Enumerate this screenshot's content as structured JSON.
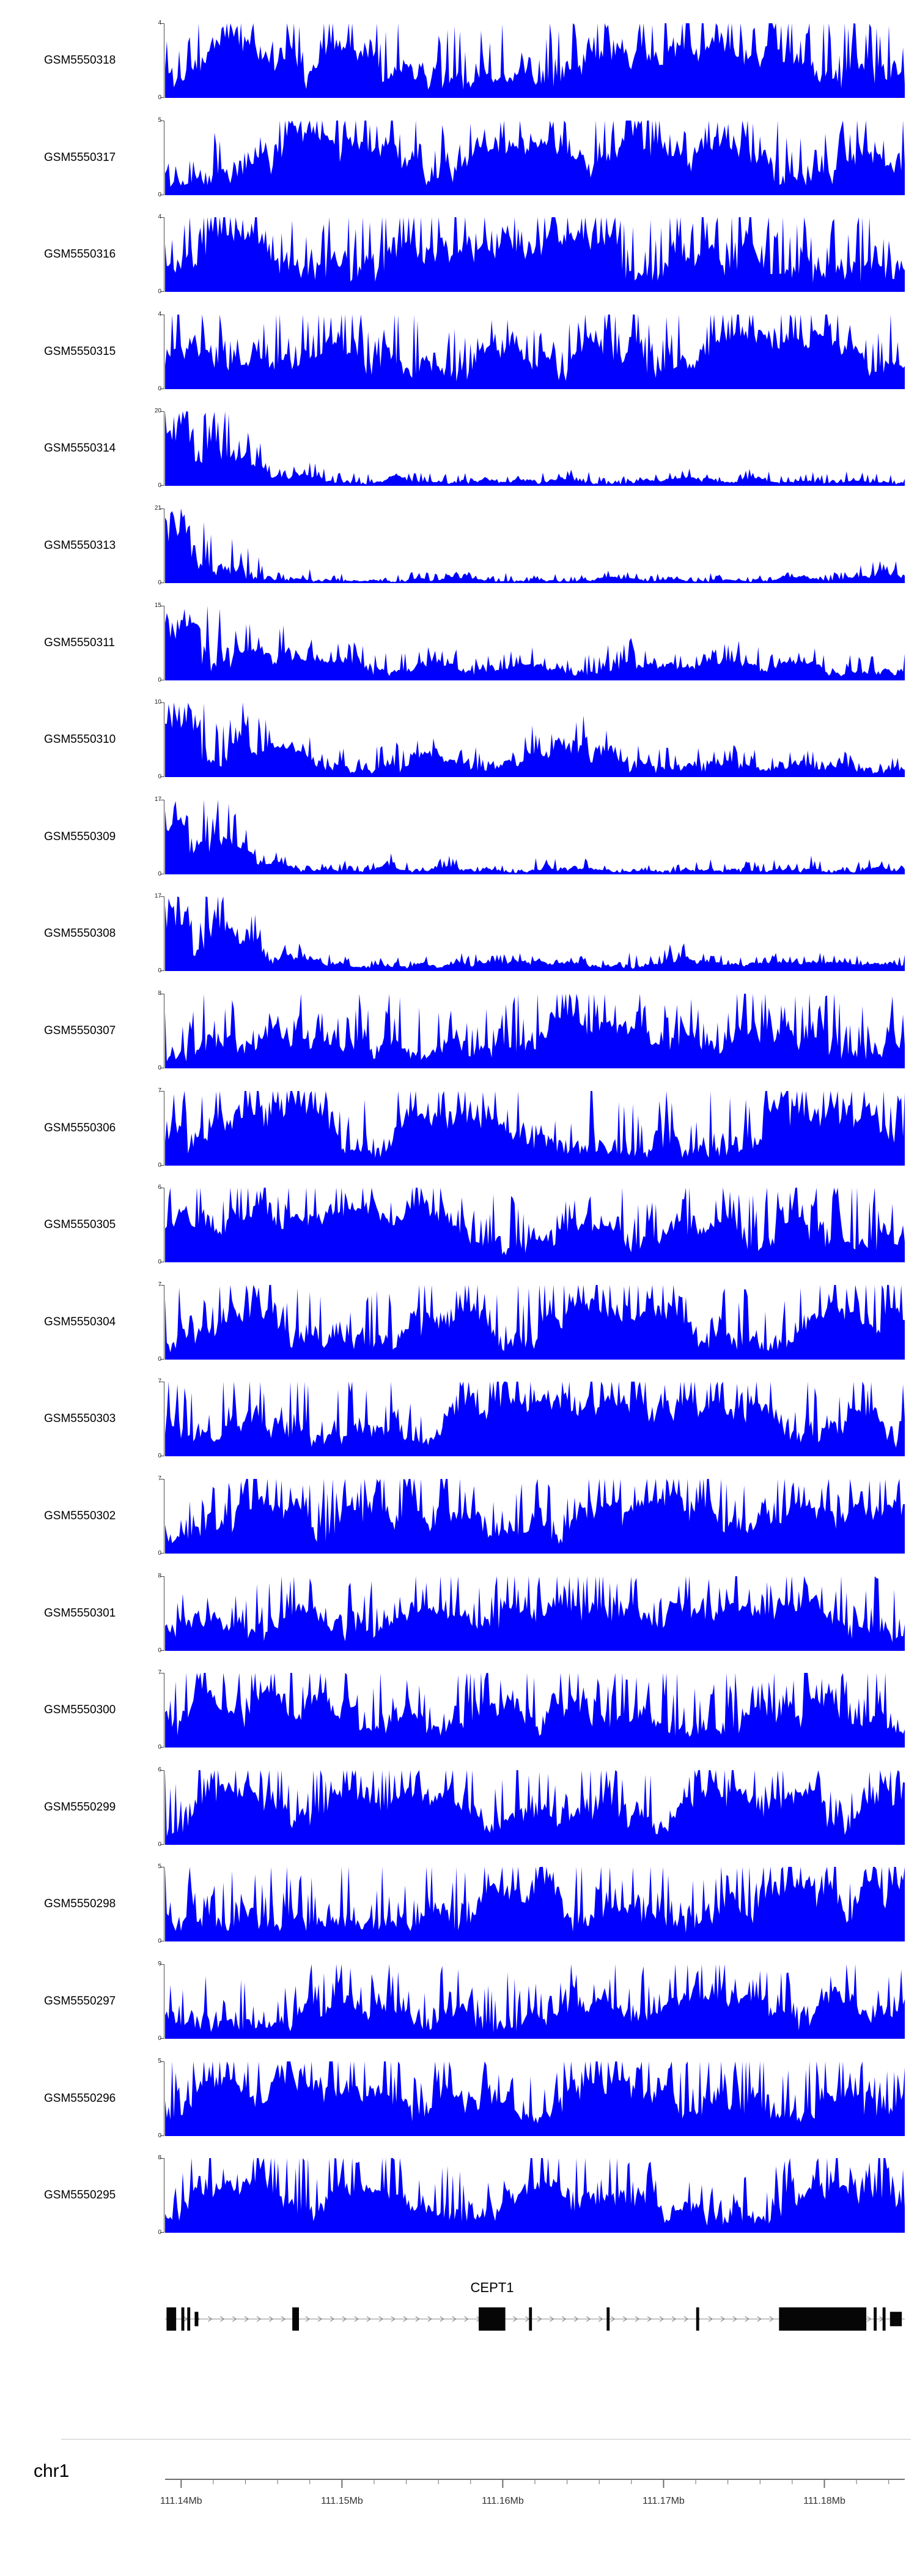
{
  "chart_data": {
    "type": "area",
    "signal_color": "#0000FF",
    "colors": {
      "signal": "#0000FF",
      "exon": "#060606",
      "gene_line": "#8a8a8a",
      "axis": "#6e6e6e",
      "separator": "#c8c8c8",
      "text": "#000000"
    },
    "region": {
      "chromosome": "chr1",
      "start_mb": 111.139,
      "end_mb": 111.185,
      "unit": "Mb"
    },
    "axis": {
      "major_values": [
        111.14,
        111.15,
        111.16,
        111.17,
        111.18
      ],
      "major_labels": [
        "111.14Mb",
        "111.15Mb",
        "111.16Mb",
        "111.17Mb",
        "111.18Mb"
      ],
      "minor_start": 111.14,
      "minor_step": 0.002,
      "minor_count": 23
    },
    "gene_track": {
      "gene_label": "CEPT1",
      "arrow_direction": "right",
      "exons": [
        {
          "x": 0.002,
          "w": 0.013,
          "h": 1
        },
        {
          "x": 0.022,
          "w": 0.004,
          "h": 1
        },
        {
          "x": 0.03,
          "w": 0.004,
          "h": 1
        },
        {
          "x": 0.04,
          "w": 0.005,
          "h": 0.62
        },
        {
          "x": 0.172,
          "w": 0.009,
          "h": 1
        },
        {
          "x": 0.424,
          "w": 0.036,
          "h": 1
        },
        {
          "x": 0.492,
          "w": 0.004,
          "h": 1
        },
        {
          "x": 0.597,
          "w": 0.004,
          "h": 1
        },
        {
          "x": 0.718,
          "w": 0.004,
          "h": 1
        },
        {
          "x": 0.83,
          "w": 0.118,
          "h": 1
        },
        {
          "x": 0.958,
          "w": 0.004,
          "h": 1
        },
        {
          "x": 0.97,
          "w": 0.004,
          "h": 1
        },
        {
          "x": 0.98,
          "w": 0.016,
          "h": 0.62
        }
      ]
    },
    "tracks": [
      {
        "name": "GSM5550318",
        "ymax": 4,
        "ymin": 0,
        "profile": "distributed",
        "seed": 11,
        "envelope": [
          0.75,
          0.95,
          0.7,
          0.8,
          0.85,
          0.7,
          0.8,
          0.75,
          0.85,
          0.8,
          0.9,
          0.75
        ]
      },
      {
        "name": "GSM5550317",
        "ymax": 5,
        "ymin": 0,
        "profile": "distributed",
        "seed": 22,
        "envelope": [
          0.7,
          0.75,
          1.0,
          0.7,
          0.8,
          0.7,
          0.75,
          0.8,
          0.7,
          0.85,
          0.75,
          0.7
        ]
      },
      {
        "name": "GSM5550316",
        "ymax": 4,
        "ymin": 0,
        "profile": "distributed",
        "seed": 33,
        "envelope": [
          0.85,
          0.9,
          0.8,
          0.85,
          0.9,
          0.8,
          0.85,
          0.8,
          0.9,
          0.85,
          0.8,
          0.85
        ]
      },
      {
        "name": "GSM5550315",
        "ymax": 4,
        "ymin": 0,
        "profile": "distributed",
        "seed": 44,
        "envelope": [
          0.7,
          0.8,
          0.75,
          0.7,
          0.8,
          0.75,
          0.7,
          1.0,
          0.75,
          0.8,
          0.85,
          0.7
        ]
      },
      {
        "name": "GSM5550314",
        "ymax": 20,
        "ymin": 0,
        "profile": "left-peak",
        "seed": 55,
        "envelope": [
          1,
          0.75,
          0.3,
          0.18,
          0.14,
          0.13,
          0.14,
          0.12,
          0.14,
          0.12,
          0.13,
          0.12,
          0.13,
          0.12,
          0.13,
          0.12
        ]
      },
      {
        "name": "GSM5550313",
        "ymax": 21,
        "ymin": 0,
        "profile": "left-peak",
        "seed": 66,
        "envelope": [
          1,
          0.7,
          0.22,
          0.13,
          0.1,
          0.1,
          0.09,
          0.1,
          0.09,
          0.1,
          0.09,
          0.1,
          0.09,
          0.1,
          0.12,
          0.3
        ]
      },
      {
        "name": "GSM5550311",
        "ymax": 15,
        "ymin": 0,
        "profile": "left-peak",
        "seed": 77,
        "envelope": [
          1,
          0.8,
          0.45,
          0.3,
          0.26,
          0.3,
          0.24,
          0.22,
          0.26,
          0.3,
          0.24,
          0.26,
          0.3,
          0.26,
          0.24,
          0.22
        ]
      },
      {
        "name": "GSM5550310",
        "ymax": 10,
        "ymin": 0,
        "profile": "left-peak",
        "seed": 88,
        "envelope": [
          1,
          0.8,
          0.5,
          0.38,
          0.32,
          0.36,
          0.3,
          0.36,
          0.55,
          0.42,
          0.32,
          0.36,
          0.3,
          0.32,
          0.36,
          0.3
        ]
      },
      {
        "name": "GSM5550309",
        "ymax": 17,
        "ymin": 0,
        "profile": "left-peak",
        "seed": 99,
        "envelope": [
          1,
          0.7,
          0.25,
          0.16,
          0.13,
          0.15,
          0.13,
          0.12,
          0.15,
          0.13,
          0.12,
          0.13,
          0.12,
          0.15,
          0.13,
          0.12
        ]
      },
      {
        "name": "GSM5550308",
        "ymax": 17,
        "ymin": 0,
        "profile": "left-peak",
        "seed": 110,
        "envelope": [
          1,
          0.72,
          0.3,
          0.17,
          0.13,
          0.12,
          0.13,
          0.15,
          0.12,
          0.13,
          0.28,
          0.13,
          0.12,
          0.13,
          0.12,
          0.13
        ]
      },
      {
        "name": "GSM5550307",
        "ymax": 8,
        "ymin": 0,
        "profile": "distributed",
        "seed": 121,
        "envelope": [
          0.6,
          0.8,
          0.7,
          0.9,
          0.6,
          0.7,
          0.8,
          0.6,
          0.75,
          0.7,
          0.85,
          0.65
        ]
      },
      {
        "name": "GSM5550306",
        "ymax": 7,
        "ymin": 0,
        "profile": "distributed",
        "seed": 132,
        "envelope": [
          0.7,
          0.8,
          0.9,
          0.7,
          0.8,
          0.7,
          0.9,
          0.8,
          0.7,
          0.95,
          0.85,
          0.9
        ]
      },
      {
        "name": "GSM5550305",
        "ymax": 6,
        "ymin": 0,
        "profile": "distributed",
        "seed": 143,
        "envelope": [
          0.8,
          0.9,
          0.7,
          0.8,
          0.85,
          0.7,
          0.8,
          0.75,
          0.7,
          0.8,
          0.95,
          0.8
        ]
      },
      {
        "name": "GSM5550304",
        "ymax": 7,
        "ymin": 0,
        "profile": "distributed",
        "seed": 154,
        "envelope": [
          0.7,
          0.95,
          0.8,
          0.7,
          0.8,
          0.75,
          0.95,
          0.7,
          0.8,
          0.7,
          0.9,
          0.75
        ]
      },
      {
        "name": "GSM5550303",
        "ymax": 7,
        "ymin": 0,
        "profile": "distributed",
        "seed": 165,
        "envelope": [
          0.75,
          0.8,
          0.9,
          0.8,
          0.75,
          0.8,
          0.9,
          0.75,
          0.8,
          0.85,
          0.75,
          0.8
        ]
      },
      {
        "name": "GSM5550302",
        "ymax": 7,
        "ymin": 0,
        "profile": "distributed",
        "seed": 176,
        "envelope": [
          0.7,
          0.8,
          0.75,
          0.95,
          0.8,
          0.7,
          0.8,
          0.75,
          0.85,
          0.8,
          0.7,
          0.75
        ]
      },
      {
        "name": "GSM5550301",
        "ymax": 8,
        "ymin": 0,
        "profile": "distributed",
        "seed": 187,
        "envelope": [
          0.55,
          0.7,
          0.6,
          0.65,
          0.6,
          0.7,
          0.65,
          0.6,
          0.7,
          0.65,
          0.95,
          0.6
        ]
      },
      {
        "name": "GSM5550300",
        "ymax": 7,
        "ymin": 0,
        "profile": "distributed",
        "seed": 198,
        "envelope": [
          0.8,
          0.9,
          0.75,
          0.8,
          0.85,
          0.75,
          0.8,
          0.9,
          0.7,
          0.85,
          0.8,
          0.75
        ]
      },
      {
        "name": "GSM5550299",
        "ymax": 6,
        "ymin": 0,
        "profile": "distributed",
        "seed": 209,
        "envelope": [
          0.7,
          0.85,
          0.75,
          0.8,
          0.75,
          0.85,
          0.7,
          0.8,
          0.9,
          0.75,
          0.8,
          0.85
        ]
      },
      {
        "name": "GSM5550298",
        "ymax": 5,
        "ymin": 0,
        "profile": "distributed",
        "seed": 220,
        "envelope": [
          0.85,
          0.9,
          0.85,
          0.9,
          0.85,
          0.8,
          0.9,
          0.85,
          0.9,
          0.85,
          0.9,
          0.85
        ]
      },
      {
        "name": "GSM5550297",
        "ymax": 9,
        "ymin": 0,
        "profile": "distributed",
        "seed": 231,
        "envelope": [
          0.55,
          0.7,
          0.6,
          0.65,
          0.55,
          0.6,
          0.65,
          0.55,
          0.65,
          0.6,
          0.7,
          0.55
        ]
      },
      {
        "name": "GSM5550296",
        "ymax": 5,
        "ymin": 0,
        "profile": "distributed",
        "seed": 242,
        "envelope": [
          0.75,
          0.85,
          0.8,
          0.75,
          0.85,
          0.75,
          0.8,
          0.85,
          0.75,
          0.8,
          0.85,
          0.8
        ]
      },
      {
        "name": "GSM5550295",
        "ymax": 8,
        "ymin": 0,
        "profile": "distributed",
        "seed": 253,
        "envelope": [
          0.6,
          0.75,
          0.95,
          0.65,
          0.7,
          0.65,
          0.75,
          0.6,
          0.7,
          0.65,
          0.75,
          0.7
        ]
      }
    ]
  }
}
